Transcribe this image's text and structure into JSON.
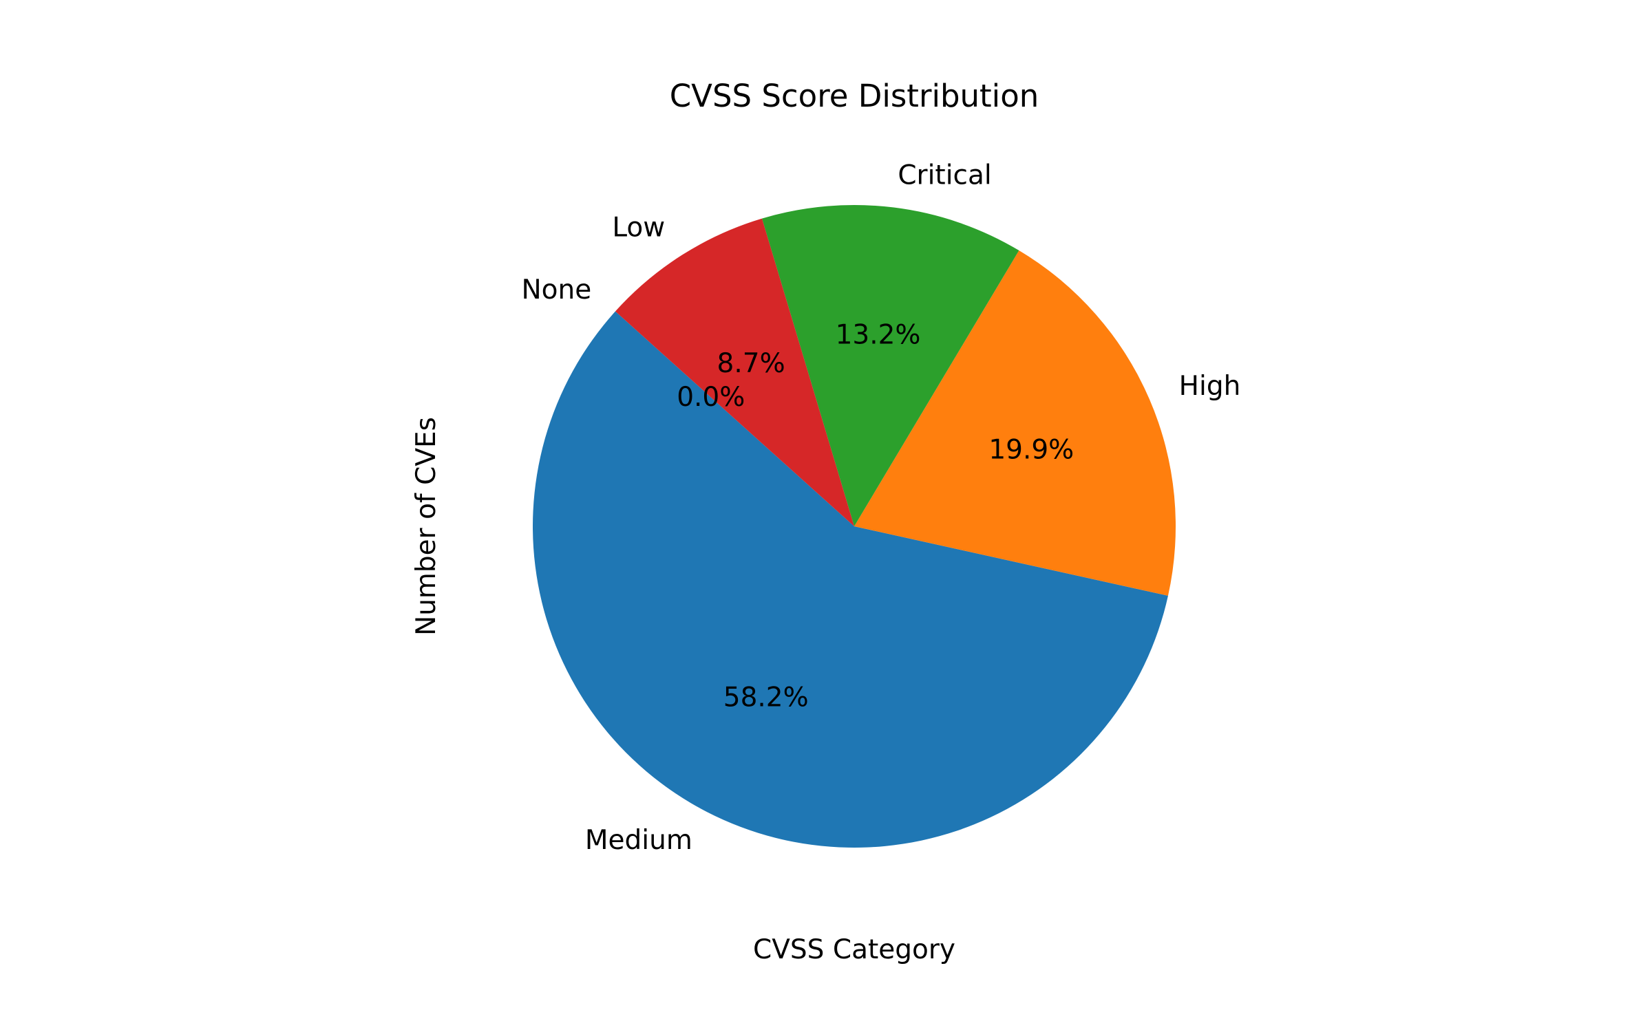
{
  "chart_data": {
    "type": "pie",
    "title": "CVSS Score Distribution",
    "xlabel": "CVSS Category",
    "ylabel": "Number of CVEs",
    "start_angle_deg": 138,
    "direction": "counterclockwise",
    "slices": [
      {
        "label": "None",
        "percent": 0.0,
        "pct_text": "0.0%",
        "color": "#1f77b4"
      },
      {
        "label": "Medium",
        "percent": 58.2,
        "pct_text": "58.2%",
        "color": "#1f77b4"
      },
      {
        "label": "High",
        "percent": 19.9,
        "pct_text": "19.9%",
        "color": "#ff7f0e"
      },
      {
        "label": "Critical",
        "percent": 13.2,
        "pct_text": "13.2%",
        "color": "#2ca02c"
      },
      {
        "label": "Low",
        "percent": 8.7,
        "pct_text": "8.7%",
        "color": "#d62728"
      }
    ],
    "legend": "none"
  }
}
